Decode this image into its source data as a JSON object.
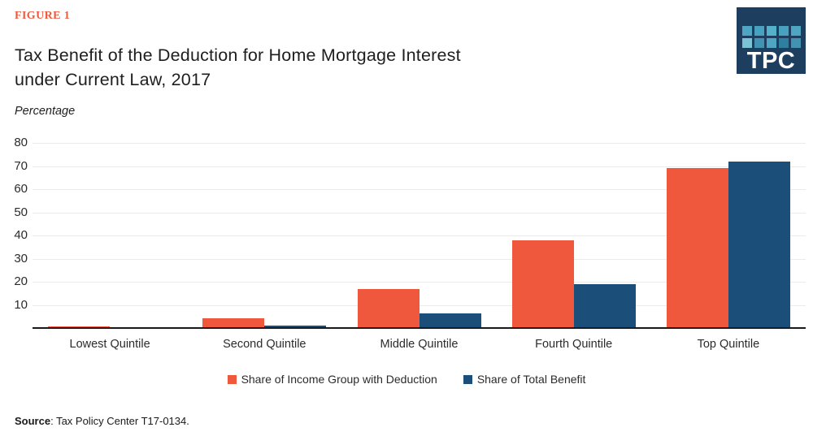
{
  "figure_label": "FIGURE 1",
  "title": {
    "line1": "Tax Benefit of the Deduction for Home Mortgage Interest",
    "line2": "under Current Law, 2017"
  },
  "unit_label": "Percentage",
  "source": {
    "prefix": "Source",
    "rest": ": Tax Policy Center T17-0134."
  },
  "logo": {
    "text": "TPC",
    "background": "#1d3e5f",
    "square_colors": [
      "#4ea6c3",
      "#48a1bf",
      "#55b0ca",
      "#48a1bf",
      "#4ea6c3",
      "#7cc3d6",
      "#4193b1",
      "#4ea6c3",
      "#2f7f9e",
      "#4193b1"
    ]
  },
  "colors": {
    "accent_orange": "#f0583e",
    "accent_blue": "#1b4e79",
    "figure_label": "#ee5a3e",
    "gridline": "#ebebeb",
    "axis_line": "#1a1a1a"
  },
  "chart_data": {
    "type": "bar",
    "title": "Tax Benefit of the Deduction for Home Mortgage Interest under Current Law, 2017",
    "xlabel": "",
    "ylabel": "Percentage",
    "ylim": [
      0,
      80
    ],
    "yticks": [
      10,
      20,
      30,
      40,
      50,
      60,
      70,
      80
    ],
    "grid": true,
    "legend_position": "bottom",
    "categories": [
      "Lowest Quintile",
      "Second Quintile",
      "Middle Quintile",
      "Fourth Quintile",
      "Top Quintile"
    ],
    "series": [
      {
        "name": "Share of Income Group with Deduction",
        "color": "#f0583e",
        "values": [
          0.7,
          4.1,
          17.0,
          38.0,
          69.0
        ]
      },
      {
        "name": "Share of Total Benefit",
        "color": "#1b4e79",
        "values": [
          0.1,
          1.0,
          6.2,
          19.0,
          72.0
        ]
      }
    ]
  }
}
